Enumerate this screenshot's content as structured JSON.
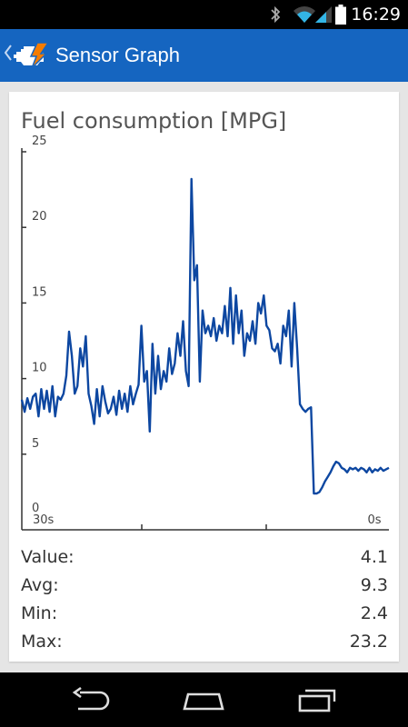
{
  "status_bar": {
    "time": "16:29",
    "icons": [
      "bluetooth-icon",
      "wifi-icon",
      "cell-signal-icon",
      "battery-icon"
    ]
  },
  "action_bar": {
    "title": "Sensor Graph",
    "icons": [
      "back-chevron-icon",
      "engine-warning-icon"
    ],
    "color": "#1565c0"
  },
  "card": {
    "heading": "Fuel consumption [MPG]"
  },
  "chart_data": {
    "type": "line",
    "title": "",
    "xlabel": "",
    "ylabel": "",
    "ylim": [
      0,
      25
    ],
    "xlim": [
      30,
      0
    ],
    "y_ticks": [
      "0",
      "5",
      "10",
      "15",
      "20",
      "25"
    ],
    "x_ticks": [
      "30s",
      "0s"
    ],
    "grid": false,
    "line_color": "#0d47a1",
    "series": [
      {
        "values": [
          8.6,
          7.8,
          8.7,
          8.0,
          8.8,
          9.0,
          7.5,
          9.3,
          8.0,
          9.2,
          7.8,
          9.5,
          7.5,
          8.8,
          8.6,
          9.0,
          10.2,
          13.1,
          11.5,
          9.0,
          9.5,
          12.0,
          10.8,
          12.8,
          9.0,
          8.2,
          7.0,
          9.3,
          7.5,
          9.5,
          8.5,
          7.7,
          8.0,
          8.8,
          7.6,
          9.2,
          8.0,
          9.0,
          7.8,
          9.5,
          8.3,
          9.0,
          9.6,
          13.5,
          9.8,
          10.5,
          6.5,
          12.3,
          9.0,
          11.5,
          9.3,
          10.5,
          9.8,
          12.0,
          10.3,
          11.0,
          13.0,
          11.5,
          13.8,
          10.5,
          9.5,
          23.2,
          16.5,
          17.5,
          9.8,
          14.5,
          13.0,
          13.5,
          12.8,
          14.0,
          12.5,
          13.5,
          13.0,
          14.8,
          12.8,
          16.0,
          12.3,
          15.5,
          13.0,
          14.5,
          11.5,
          13.0,
          12.5,
          13.8,
          12.3,
          15.0,
          14.3,
          15.5,
          13.5,
          13.2,
          12.0,
          11.8,
          12.3,
          11.0,
          13.5,
          12.8,
          14.5,
          10.8,
          15.0,
          12.0,
          8.3,
          8.0,
          7.8,
          8.0,
          8.1,
          2.4,
          2.4,
          2.5,
          2.8,
          3.2,
          3.5,
          3.8,
          4.2,
          4.5,
          4.4,
          4.1,
          4.0,
          3.8,
          4.1,
          4.0,
          4.1,
          3.9,
          4.1,
          4.0,
          3.8,
          4.1,
          3.8,
          4.0,
          3.9,
          4.1,
          3.9,
          4.0,
          4.1
        ]
      }
    ]
  },
  "stats": [
    {
      "label": "Value:",
      "value": "4.1"
    },
    {
      "label": "Avg:",
      "value": "9.3"
    },
    {
      "label": "Min:",
      "value": "2.4"
    },
    {
      "label": "Max:",
      "value": "23.2"
    }
  ],
  "nav_bar": {
    "buttons": [
      "back-icon",
      "home-icon",
      "recent-apps-icon"
    ]
  }
}
